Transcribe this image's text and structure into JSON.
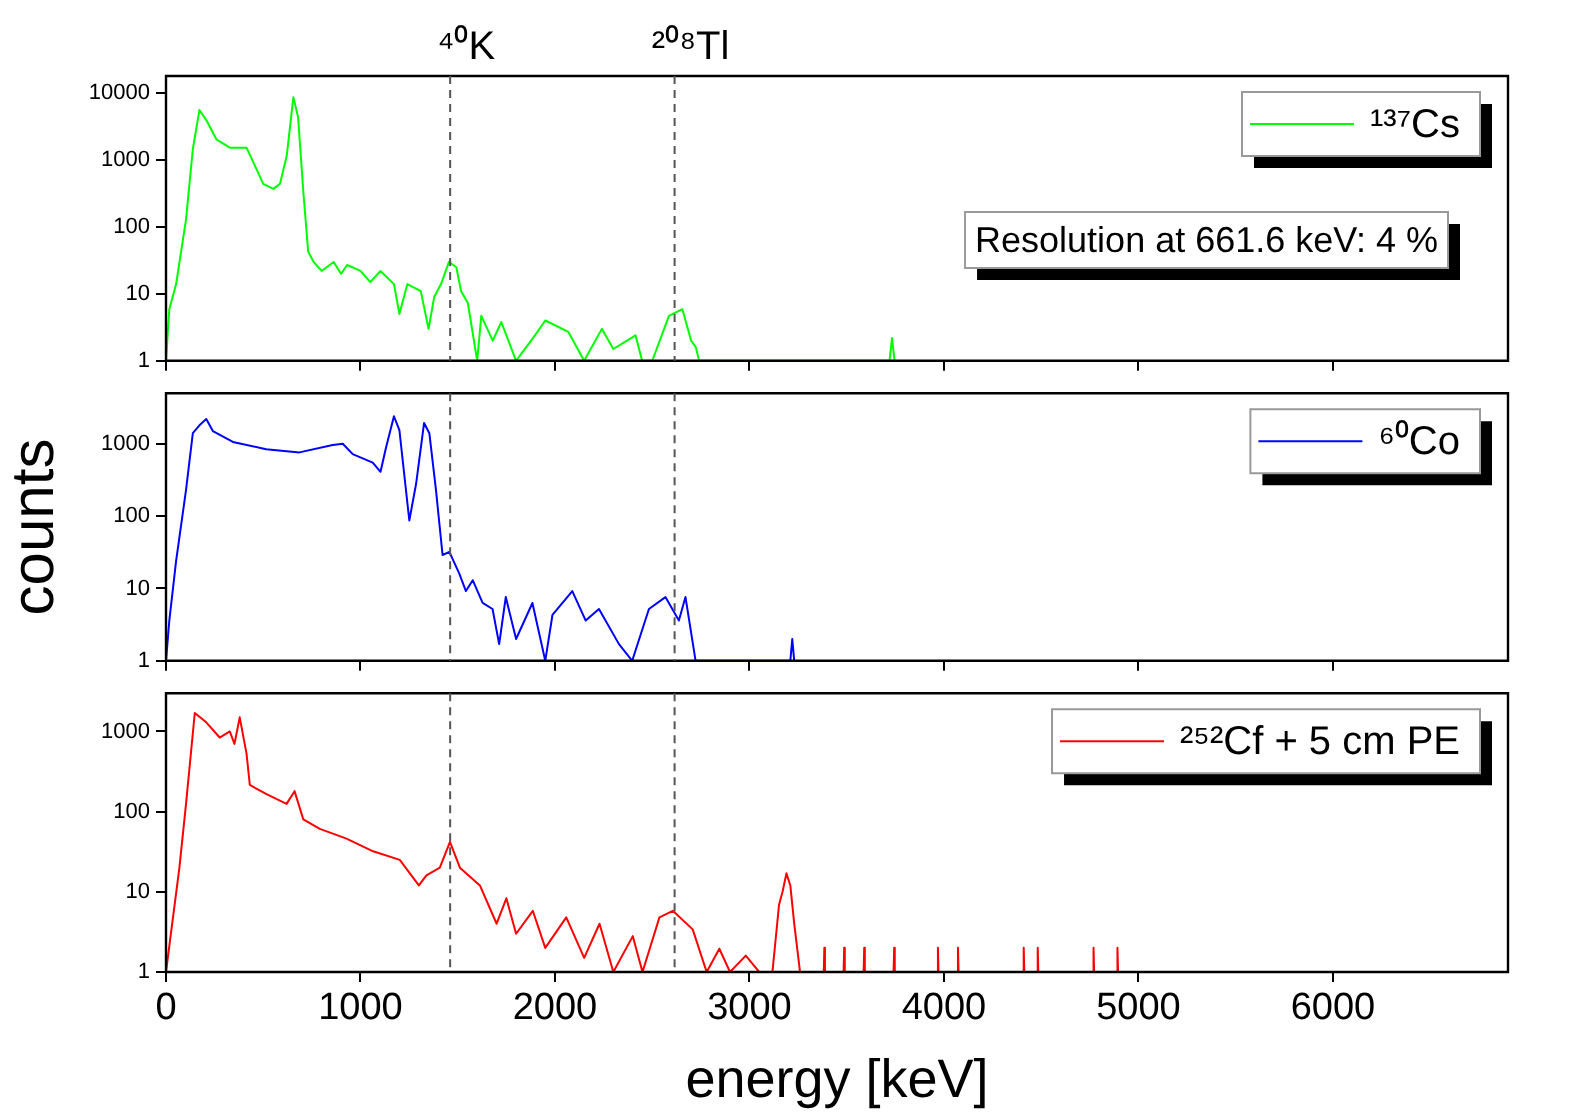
{
  "chart_data": [
    {
      "type": "line",
      "log": "y",
      "xlim": [
        0,
        6900
      ],
      "xticks": [
        0,
        1000,
        2000,
        3000,
        4000,
        5000,
        6000
      ],
      "ylim": [
        1,
        18000
      ],
      "yticks": [
        1,
        10,
        100,
        1000,
        10000
      ],
      "tick_labels": "y",
      "grid": false,
      "legend": "top right",
      "line_style": "solid",
      "marker": "none",
      "series": [
        {
          "name": "¹³⁷Cs",
          "color": "#00ff00",
          "x": [
            0,
            17,
            52,
            103,
            138,
            172,
            207,
            259,
            328,
            414,
            448,
            500,
            552,
            586,
            621,
            655,
            679,
            707,
            731,
            759,
            800,
            862,
            900,
            931,
            1000,
            1050,
            1103,
            1172,
            1200,
            1241,
            1310,
            1350,
            1379,
            1414,
            1455,
            1493,
            1517,
            1552,
            1600,
            1621,
            1680,
            1724,
            1800,
            1897,
            1950,
            2069,
            2150,
            2241,
            2300,
            2414,
            2448,
            2500,
            2586,
            2655,
            2700,
            2724,
            2741,
            3720,
            3733,
            3746
          ],
          "values": [
            1,
            5.9,
            14,
            130,
            1460,
            5600,
            3950,
            2040,
            1530,
            1530,
            940,
            440,
            370,
            440,
            1170,
            8700,
            4400,
            310,
            43,
            30,
            22,
            30,
            20,
            27,
            22,
            15,
            22,
            14,
            5,
            14,
            11,
            3,
            9,
            14,
            30,
            25,
            11,
            7.3,
            1,
            4.7,
            2,
            3.8,
            1,
            2.4,
            4,
            2.7,
            1,
            3,
            1.5,
            2.4,
            1,
            1,
            4.7,
            5.9,
            2,
            1.6,
            1,
            1,
            2.2,
            1
          ]
        }
      ],
      "ref_lines": [
        {
          "axis": "x",
          "value": 1461,
          "label": "⁴⁰K",
          "color": "#555555",
          "line_style": "dashed"
        },
        {
          "axis": "x",
          "value": 2615,
          "label": "²⁰⁸Tl",
          "color": "#555555",
          "line_style": "dashed"
        }
      ],
      "annotations": [
        "Resolution at 661.6 keV: 4 %"
      ]
    },
    {
      "type": "line",
      "log": "y",
      "xlim": [
        0,
        6900
      ],
      "xticks": [
        0,
        1000,
        2000,
        3000,
        4000,
        5000,
        6000
      ],
      "ylim": [
        1,
        5000
      ],
      "yticks": [
        1,
        10,
        100,
        1000
      ],
      "tick_labels": "y",
      "grid": false,
      "legend": "top right",
      "line_style": "solid",
      "marker": "none",
      "ylabel": "counts",
      "series": [
        {
          "name": "⁶⁰Co",
          "color": "#0000ff",
          "x": [
            0,
            17,
            52,
            103,
            138,
            172,
            207,
            241,
            344,
            515,
            686,
            857,
            909,
            960,
            1063,
            1103,
            1131,
            1172,
            1200,
            1251,
            1286,
            1327,
            1354,
            1388,
            1422,
            1457,
            1508,
            1542,
            1577,
            1628,
            1679,
            1713,
            1747,
            1800,
            1884,
            1950,
            1987,
            2089,
            2158,
            2226,
            2329,
            2397,
            2483,
            2568,
            2637,
            2671,
            2723,
            3210,
            3220,
            3230
          ],
          "values": [
            1,
            3.6,
            24,
            230,
            1400,
            1800,
            2200,
            1500,
            1060,
            840,
            760,
            960,
            1000,
            720,
            550,
            410,
            880,
            2400,
            1540,
            87,
            280,
            1940,
            1400,
            230,
            29,
            32,
            16,
            9.2,
            13,
            6.3,
            5.2,
            1.7,
            7.6,
            2,
            6.3,
            1,
            4.3,
            9.2,
            3.6,
            5.2,
            1.7,
            1,
            5.2,
            7.6,
            3.6,
            7.6,
            1,
            1,
            2,
            1
          ]
        }
      ],
      "ref_lines": [
        {
          "axis": "x",
          "value": 1461,
          "color": "#555555",
          "line_style": "dashed"
        },
        {
          "axis": "x",
          "value": 2615,
          "color": "#555555",
          "line_style": "dashed"
        }
      ]
    },
    {
      "type": "line",
      "log": "y",
      "xlim": [
        0,
        6900
      ],
      "xticks": [
        0,
        1000,
        2000,
        3000,
        4000,
        5000,
        6000
      ],
      "ylim": [
        1,
        3000
      ],
      "yticks": [
        1,
        10,
        100,
        1000
      ],
      "grid": false,
      "legend": "top right",
      "line_style": "solid",
      "marker": "none",
      "xlabel": "energy [keV]",
      "series": [
        {
          "name": "²⁵²Cf + 5 cm PE",
          "color": "#ff0000",
          "x": [
            0,
            28,
            69,
            103,
            148,
            207,
            276,
            328,
            352,
            379,
            414,
            431,
            517,
            620,
            661,
            706,
            791,
            928,
            1065,
            1202,
            1300,
            1339,
            1408,
            1460,
            1511,
            1614,
            1700,
            1750,
            1800,
            1886,
            1950,
            2058,
            2150,
            2229,
            2300,
            2400,
            2450,
            2537,
            2606,
            2708,
            2780,
            2845,
            2900,
            2981,
            3050,
            3118,
            3152,
            3170,
            3190,
            3210,
            3230,
            3260,
            3382,
            3385,
            3388,
            3484,
            3487,
            3490,
            3587,
            3590,
            3593,
            3741,
            3744,
            3747,
            3966,
            3969,
            3972,
            4069,
            4072,
            4075,
            4407,
            4410,
            4413,
            4479,
            4482,
            4485,
            4766,
            4769,
            4772,
            4889,
            4892,
            4895
          ],
          "values": [
            1,
            3.4,
            20,
            125,
            1700,
            1300,
            840,
            1000,
            700,
            1500,
            530,
            215,
            165,
            125,
            180,
            80,
            61,
            46,
            32,
            25,
            12,
            16,
            20,
            42,
            20,
            12,
            4,
            8.3,
            3,
            5.8,
            2,
            4.8,
            1.5,
            4,
            1,
            2.8,
            1,
            4.8,
            5.8,
            3.4,
            1,
            1.95,
            1,
            1.6,
            1,
            1,
            6.9,
            10,
            17,
            12,
            4,
            1,
            1,
            2,
            1,
            1,
            2,
            1,
            1,
            2,
            1,
            1,
            2,
            1,
            1,
            2,
            1,
            1,
            2,
            1,
            1,
            2,
            1,
            1,
            2,
            1,
            1,
            2,
            1,
            1,
            2,
            1
          ]
        }
      ],
      "ref_lines": [
        {
          "axis": "x",
          "value": 1461,
          "color": "#555555",
          "line_style": "dashed"
        },
        {
          "axis": "x",
          "value": 2615,
          "color": "#555555",
          "line_style": "dashed"
        }
      ]
    }
  ]
}
